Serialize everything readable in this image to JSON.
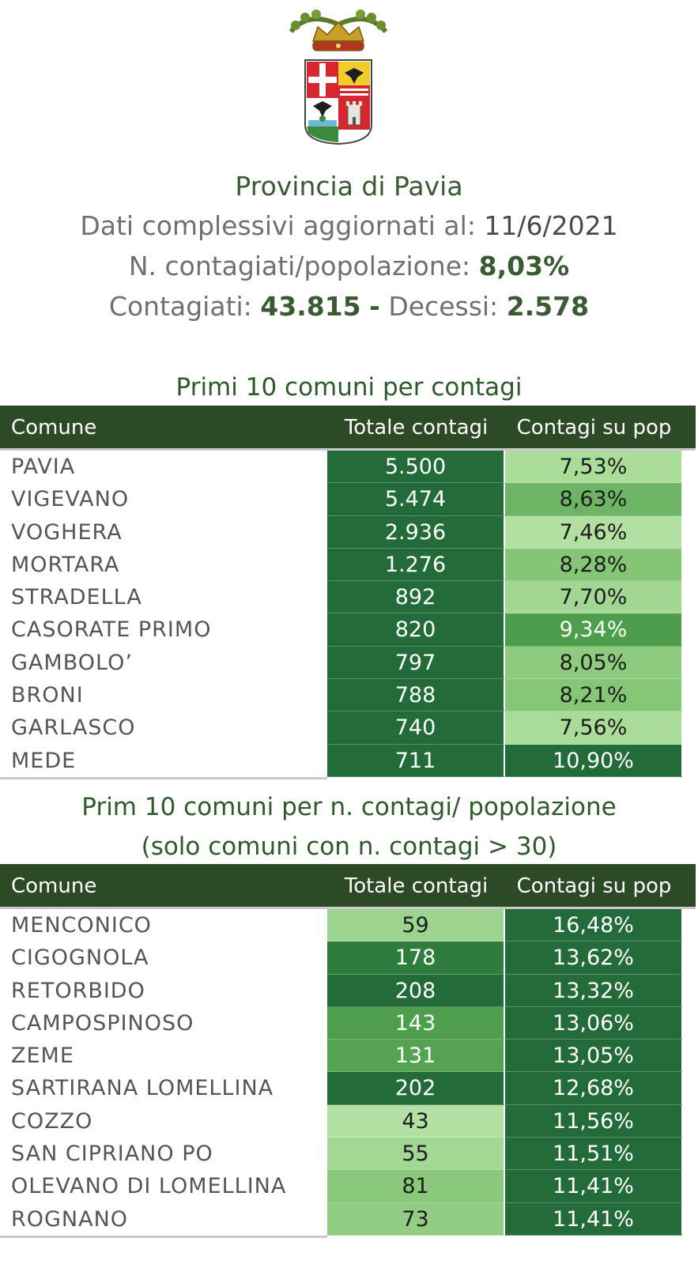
{
  "header": {
    "title": "Provincia di Pavia",
    "updated_label": "Dati complessivi aggiornati al:",
    "updated_date": "11/6/2021",
    "ratio_label": "N. contagiati/popolazione:",
    "ratio_value": "8,03%",
    "cases_label": "Contagiati:",
    "cases_value": "43.815",
    "separator": "-",
    "deaths_label": "Decessi:",
    "deaths_value": "2.578"
  },
  "chart_data": [
    {
      "type": "table",
      "title": "Primi 10 comuni per contagi",
      "columns": [
        "Comune",
        "Totale contagi",
        "Contagi su pop"
      ],
      "rows": [
        {
          "comune": "PAVIA",
          "totale": "5.500",
          "pop": "7,53%",
          "tot_color": "#246b3a",
          "pop_color": "#a9dd99"
        },
        {
          "comune": "VIGEVANO",
          "totale": "5.474",
          "pop": "8,63%",
          "tot_color": "#246b3a",
          "pop_color": "#6db564"
        },
        {
          "comune": "VOGHERA",
          "totale": "2.936",
          "pop": "7,46%",
          "tot_color": "#246b3a",
          "pop_color": "#b1e0a2"
        },
        {
          "comune": "MORTARA",
          "totale": "1.276",
          "pop": "8,28%",
          "tot_color": "#246b3a",
          "pop_color": "#84c675"
        },
        {
          "comune": "STRADELLA",
          "totale": "892",
          "pop": "7,70%",
          "tot_color": "#246b3a",
          "pop_color": "#a2d793"
        },
        {
          "comune": "CASORATE PRIMO",
          "totale": "820",
          "pop": "9,34%",
          "tot_color": "#246b3a",
          "pop_color": "#4c9e4c"
        },
        {
          "comune": "GAMBOLO’",
          "totale": "797",
          "pop": "8,05%",
          "tot_color": "#246b3a",
          "pop_color": "#8ecb7e"
        },
        {
          "comune": "BRONI",
          "totale": "788",
          "pop": "8,21%",
          "tot_color": "#246b3a",
          "pop_color": "#86c777"
        },
        {
          "comune": "GARLASCO",
          "totale": "740",
          "pop": "7,56%",
          "tot_color": "#246b3a",
          "pop_color": "#a9dc9a"
        },
        {
          "comune": "MEDE",
          "totale": "711",
          "pop": "10,90%",
          "tot_color": "#246b3a",
          "pop_color": "#246b3a"
        }
      ]
    },
    {
      "type": "table",
      "title": "Prim 10 comuni per n. contagi/ popolazione",
      "subtitle": "(solo comuni con n. contagi > 30)",
      "columns": [
        "Comune",
        "Totale contagi",
        "Contagi su pop"
      ],
      "rows": [
        {
          "comune": "MENCONICO",
          "totale": "59",
          "pop": "16,48%",
          "tot_color": "#9dd48f",
          "pop_color": "#246b3a"
        },
        {
          "comune": "CIGOGNOLA",
          "totale": "178",
          "pop": "13,62%",
          "tot_color": "#2e7d3e",
          "pop_color": "#246b3a"
        },
        {
          "comune": "RETORBIDO",
          "totale": "208",
          "pop": "13,32%",
          "tot_color": "#246b3a",
          "pop_color": "#246b3a"
        },
        {
          "comune": "CAMPOSPINOSO",
          "totale": "143",
          "pop": "13,06%",
          "tot_color": "#4f9e4d",
          "pop_color": "#246b3a"
        },
        {
          "comune": "ZEME",
          "totale": "131",
          "pop": "13,05%",
          "tot_color": "#55a352",
          "pop_color": "#246b3a"
        },
        {
          "comune": "SARTIRANA LOMELLINA",
          "totale": "202",
          "pop": "12,68%",
          "tot_color": "#246b3a",
          "pop_color": "#246b3a"
        },
        {
          "comune": "COZZO",
          "totale": "43",
          "pop": "11,56%",
          "tot_color": "#b3e1a4",
          "pop_color": "#246b3a"
        },
        {
          "comune": "SAN CIPRIANO PO",
          "totale": "55",
          "pop": "11,51%",
          "tot_color": "#a2d794",
          "pop_color": "#246b3a"
        },
        {
          "comune": "OLEVANO DI LOMELLINA",
          "totale": "81",
          "pop": "11,41%",
          "tot_color": "#8ac97b",
          "pop_color": "#246b3a"
        },
        {
          "comune": "ROGNANO",
          "totale": "73",
          "pop": "11,41%",
          "tot_color": "#93cd84",
          "pop_color": "#246b3a"
        }
      ]
    }
  ]
}
